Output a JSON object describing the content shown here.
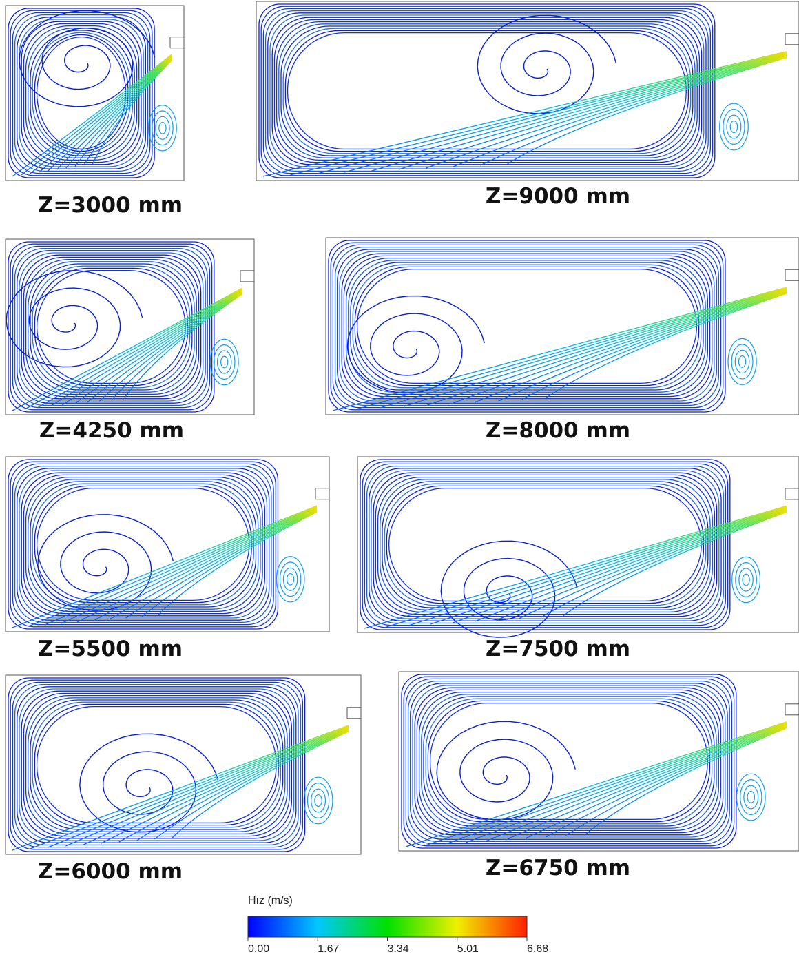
{
  "panels": [
    {
      "label": "Z=3000 mm"
    },
    {
      "label": "Z=9000 mm"
    },
    {
      "label": "Z=4250 mm"
    },
    {
      "label": "Z=8000 mm"
    },
    {
      "label": "Z=5500 mm"
    },
    {
      "label": "Z=7500 mm"
    },
    {
      "label": "Z=6000 mm"
    },
    {
      "label": "Z=6750 mm"
    }
  ],
  "colorbar": {
    "title": "Hız (m/s)",
    "ticks": [
      "0.00",
      "1.67",
      "3.34",
      "5.01",
      "6.68"
    ]
  }
}
